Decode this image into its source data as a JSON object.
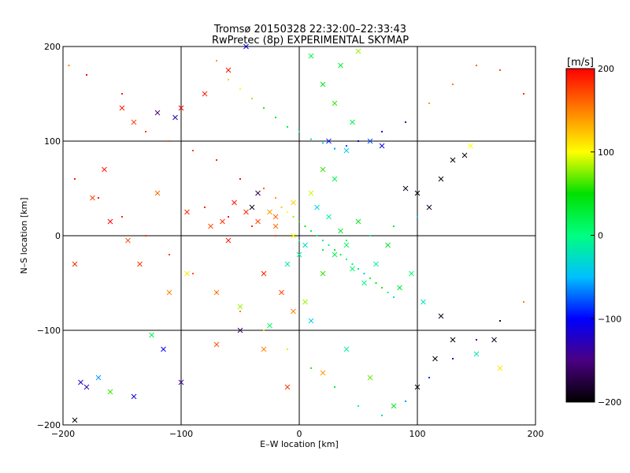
{
  "chart_data": {
    "type": "scatter",
    "title": "Tromsø 20150328 22:32:00–22:33:43",
    "subtitle": "RwPretec (8p) EXPERIMENTAL SKYMAP",
    "xlabel": "E–W location [km]",
    "ylabel": "N–S location [km]",
    "xlim": [
      -200,
      200
    ],
    "ylim": [
      -200,
      200
    ],
    "x_ticks": [
      -200,
      -100,
      0,
      100,
      200
    ],
    "y_ticks": [
      -200,
      -100,
      0,
      100,
      200
    ],
    "grid": true,
    "marker_types": [
      "x",
      "dot"
    ],
    "colorbar": {
      "label": "[m/s]",
      "range": [
        -200,
        200
      ],
      "ticks": [
        200,
        100,
        0,
        -100,
        -200
      ],
      "colormap": [
        "#000000",
        "#4b0082",
        "#0000ff",
        "#00c0ff",
        "#00ff80",
        "#00e000",
        "#ffff00",
        "#ff8000",
        "#ff0000"
      ]
    },
    "series": [
      {
        "marker": "x",
        "points": [
          [
            -185,
            -155,
            -120
          ],
          [
            -170,
            -150,
            -60
          ],
          [
            -120,
            130,
            -150
          ],
          [
            -150,
            135,
            190
          ],
          [
            -135,
            -30,
            180
          ],
          [
            -110,
            -60,
            150
          ],
          [
            -145,
            -5,
            170
          ],
          [
            -160,
            15,
            200
          ],
          [
            -190,
            -30,
            185
          ],
          [
            -175,
            40,
            175
          ],
          [
            -165,
            70,
            190
          ],
          [
            -140,
            120,
            175
          ],
          [
            -100,
            135,
            200
          ],
          [
            -80,
            150,
            190
          ],
          [
            -60,
            175,
            195
          ],
          [
            -45,
            200,
            -100
          ],
          [
            -105,
            125,
            -130
          ],
          [
            -120,
            45,
            160
          ],
          [
            -95,
            25,
            185
          ],
          [
            -75,
            10,
            170
          ],
          [
            -60,
            -5,
            190
          ],
          [
            -40,
            30,
            -190
          ],
          [
            -35,
            45,
            -170
          ],
          [
            -20,
            10,
            160
          ],
          [
            -30,
            -40,
            190
          ],
          [
            -15,
            -60,
            175
          ],
          [
            -5,
            -80,
            150
          ],
          [
            5,
            -70,
            80
          ],
          [
            10,
            -90,
            -40
          ],
          [
            20,
            -40,
            60
          ],
          [
            30,
            -20,
            20
          ],
          [
            45,
            -35,
            10
          ],
          [
            55,
            -50,
            0
          ],
          [
            65,
            -30,
            -10
          ],
          [
            75,
            -10,
            40
          ],
          [
            85,
            -55,
            30
          ],
          [
            95,
            -40,
            10
          ],
          [
            105,
            -70,
            -20
          ],
          [
            50,
            15,
            40
          ],
          [
            40,
            -10,
            10
          ],
          [
            35,
            5,
            30
          ],
          [
            25,
            20,
            -10
          ],
          [
            15,
            30,
            -30
          ],
          [
            -5,
            35,
            120
          ],
          [
            10,
            45,
            90
          ],
          [
            20,
            70,
            60
          ],
          [
            30,
            60,
            20
          ],
          [
            40,
            90,
            -40
          ],
          [
            60,
            100,
            -80
          ],
          [
            45,
            120,
            20
          ],
          [
            30,
            140,
            60
          ],
          [
            20,
            160,
            40
          ],
          [
            35,
            180,
            30
          ],
          [
            50,
            195,
            80
          ],
          [
            10,
            190,
            20
          ],
          [
            25,
            100,
            -90
          ],
          [
            70,
            95,
            -110
          ],
          [
            90,
            50,
            -190
          ],
          [
            100,
            45,
            -200
          ],
          [
            110,
            30,
            -185
          ],
          [
            120,
            60,
            -195
          ],
          [
            130,
            80,
            -200
          ],
          [
            140,
            85,
            -190
          ],
          [
            145,
            95,
            100
          ],
          [
            120,
            -85,
            -190
          ],
          [
            130,
            -110,
            -200
          ],
          [
            115,
            -130,
            -195
          ],
          [
            165,
            -110,
            -190
          ],
          [
            170,
            -140,
            110
          ],
          [
            150,
            -125,
            -20
          ],
          [
            100,
            -160,
            -195
          ],
          [
            80,
            -180,
            40
          ],
          [
            60,
            -150,
            70
          ],
          [
            40,
            -120,
            -10
          ],
          [
            20,
            -145,
            140
          ],
          [
            -10,
            -160,
            180
          ],
          [
            -30,
            -120,
            150
          ],
          [
            -50,
            -100,
            -160
          ],
          [
            -70,
            -115,
            170
          ],
          [
            -100,
            -155,
            -140
          ],
          [
            -140,
            -170,
            -110
          ],
          [
            -160,
            -165,
            60
          ],
          [
            -180,
            -160,
            -130
          ],
          [
            -190,
            -195,
            -200
          ],
          [
            -115,
            -120,
            -100
          ],
          [
            -125,
            -105,
            20
          ],
          [
            -95,
            -40,
            110
          ],
          [
            -70,
            -60,
            150
          ],
          [
            -50,
            -75,
            80
          ],
          [
            -25,
            -95,
            10
          ],
          [
            -10,
            -30,
            -20
          ],
          [
            0,
            -20,
            -10
          ],
          [
            5,
            -10,
            -30
          ],
          [
            -5,
            0,
            100
          ],
          [
            -20,
            20,
            160
          ],
          [
            -25,
            25,
            140
          ],
          [
            -35,
            15,
            175
          ],
          [
            -45,
            25,
            185
          ],
          [
            -55,
            35,
            195
          ],
          [
            -65,
            15,
            180
          ]
        ]
      },
      {
        "marker": "dot",
        "points": [
          [
            -195,
            180,
            150
          ],
          [
            -180,
            170,
            200
          ],
          [
            -150,
            150,
            190
          ],
          [
            -130,
            110,
            180
          ],
          [
            -110,
            100,
            170
          ],
          [
            -90,
            90,
            175
          ],
          [
            -70,
            80,
            185
          ],
          [
            -50,
            60,
            195
          ],
          [
            -30,
            50,
            160
          ],
          [
            -20,
            40,
            140
          ],
          [
            -15,
            30,
            120
          ],
          [
            -10,
            25,
            100
          ],
          [
            -5,
            20,
            80
          ],
          [
            0,
            15,
            60
          ],
          [
            5,
            10,
            40
          ],
          [
            10,
            5,
            20
          ],
          [
            15,
            0,
            0
          ],
          [
            20,
            -5,
            -20
          ],
          [
            25,
            -10,
            10
          ],
          [
            30,
            -15,
            30
          ],
          [
            35,
            -20,
            20
          ],
          [
            40,
            -25,
            0
          ],
          [
            45,
            -30,
            -10
          ],
          [
            50,
            -35,
            -30
          ],
          [
            55,
            -40,
            -50
          ],
          [
            60,
            -45,
            20
          ],
          [
            65,
            -50,
            40
          ],
          [
            70,
            -55,
            60
          ],
          [
            75,
            -60,
            10
          ],
          [
            80,
            -65,
            -20
          ],
          [
            -190,
            60,
            190
          ],
          [
            -170,
            40,
            195
          ],
          [
            -150,
            20,
            185
          ],
          [
            -130,
            0,
            180
          ],
          [
            -110,
            -20,
            175
          ],
          [
            -90,
            -40,
            170
          ],
          [
            -70,
            -60,
            165
          ],
          [
            -50,
            -80,
            150
          ],
          [
            -30,
            -100,
            120
          ],
          [
            -10,
            -120,
            90
          ],
          [
            10,
            -140,
            60
          ],
          [
            30,
            -160,
            30
          ],
          [
            50,
            -180,
            0
          ],
          [
            70,
            -190,
            -30
          ],
          [
            90,
            -175,
            -60
          ],
          [
            110,
            -150,
            -90
          ],
          [
            130,
            -130,
            -120
          ],
          [
            150,
            -110,
            -150
          ],
          [
            170,
            -90,
            -180
          ],
          [
            190,
            -70,
            150
          ],
          [
            190,
            150,
            180
          ],
          [
            170,
            175,
            170
          ],
          [
            150,
            180,
            160
          ],
          [
            130,
            160,
            150
          ],
          [
            110,
            140,
            140
          ],
          [
            90,
            120,
            -140
          ],
          [
            70,
            110,
            -120
          ],
          [
            50,
            100,
            -100
          ],
          [
            40,
            95,
            -80
          ],
          [
            30,
            92,
            -60
          ],
          [
            20,
            98,
            -40
          ],
          [
            10,
            102,
            -20
          ],
          [
            0,
            110,
            0
          ],
          [
            -10,
            115,
            20
          ],
          [
            -20,
            125,
            40
          ],
          [
            -30,
            135,
            60
          ],
          [
            -40,
            145,
            80
          ],
          [
            -50,
            155,
            100
          ],
          [
            -60,
            165,
            120
          ],
          [
            -70,
            185,
            140
          ],
          [
            -80,
            30,
            190
          ],
          [
            -60,
            20,
            195
          ],
          [
            -40,
            10,
            185
          ],
          [
            -20,
            0,
            175
          ],
          [
            0,
            -5,
            -10
          ],
          [
            20,
            -15,
            20
          ],
          [
            40,
            -5,
            10
          ],
          [
            60,
            0,
            -20
          ],
          [
            80,
            10,
            30
          ],
          [
            100,
            20,
            -50
          ]
        ]
      }
    ]
  }
}
